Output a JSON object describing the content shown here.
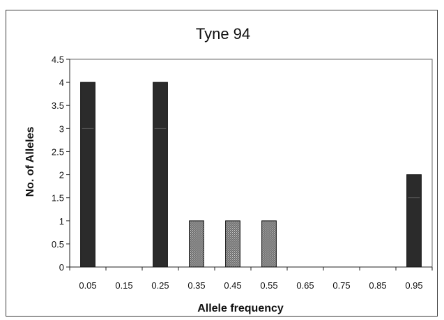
{
  "chart_data": {
    "type": "bar",
    "title": "Tyne 94",
    "xlabel": "Allele frequency",
    "ylabel": "No. of Alleles",
    "categories": [
      "0.05",
      "0.15",
      "0.25",
      "0.35",
      "0.45",
      "0.55",
      "0.65",
      "0.75",
      "0.85",
      "0.95"
    ],
    "values": [
      4,
      0,
      4,
      1,
      1,
      1,
      0,
      0,
      0,
      2
    ],
    "ylim": [
      0,
      4.5
    ],
    "yticks": [
      "0",
      "0.5",
      "1",
      "1.5",
      "2",
      "2.5",
      "3",
      "3.5",
      "4",
      "4.5"
    ],
    "grid": false,
    "legend": "none",
    "bar_color": "#2b2b2b",
    "light_bar_color": "#8a8a8a"
  }
}
